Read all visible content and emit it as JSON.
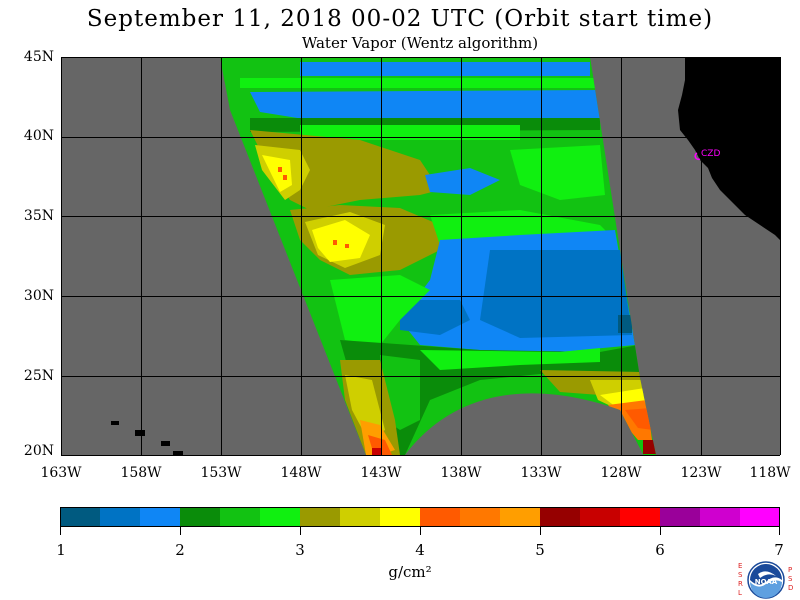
{
  "header": {
    "title": "September 11, 2018  00-02 UTC  (Orbit start time)",
    "subtitle": "Water Vapor (Wentz algorithm)"
  },
  "map": {
    "lat_labels": [
      "45N",
      "40N",
      "35N",
      "30N",
      "25N",
      "20N"
    ],
    "lon_labels": [
      "163W",
      "158W",
      "153W",
      "148W",
      "143W",
      "138W",
      "133W",
      "128W",
      "123W",
      "118W"
    ],
    "lat_range": [
      20,
      45
    ],
    "lon_range": [
      -163,
      -118
    ],
    "colors": {
      "no_data": "#666666",
      "land": "#000000",
      "grid": "#000000",
      "station": "#ff00ff"
    },
    "station_label": "CZD",
    "station_location": {
      "lat": 38.6,
      "lon": -123.2
    }
  },
  "colorbar": {
    "tick_labels": [
      "1",
      "2",
      "3",
      "4",
      "5",
      "6",
      "7"
    ],
    "units": "g/cm²",
    "colors": [
      "#005a80",
      "#0073c4",
      "#0f86f5",
      "#0a8c0a",
      "#12c212",
      "#10f010",
      "#9a9a00",
      "#cfcf00",
      "#ffff00",
      "#ff5a00",
      "#ff7800",
      "#ff9e00",
      "#960000",
      "#c80000",
      "#ff0000",
      "#9a009a",
      "#cf00cf",
      "#ff00ff"
    ]
  },
  "logo": {
    "left_letters": "ESRL",
    "right_letters": "PSD",
    "text": "NOAA"
  }
}
